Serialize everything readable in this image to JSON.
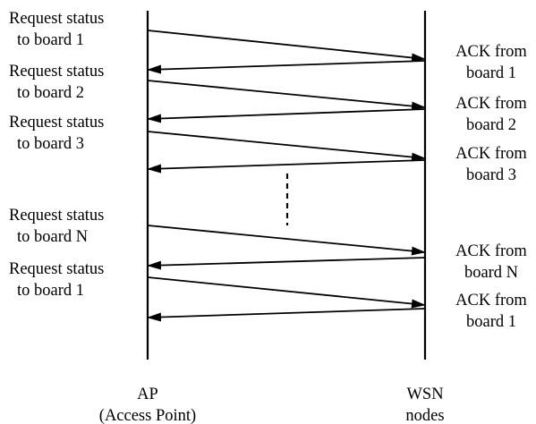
{
  "left_lane": {
    "line1": "AP",
    "line2": "(Access Point)"
  },
  "right_lane": {
    "line1": "WSN",
    "line2": "nodes"
  },
  "requests": [
    {
      "line1": "Request status",
      "line2": "to board 1"
    },
    {
      "line1": "Request status",
      "line2": "to board 2"
    },
    {
      "line1": "Request status",
      "line2": "to board 3"
    },
    {
      "line1": "Request status",
      "line2": "to board N"
    },
    {
      "line1": "Request status",
      "line2": "to board 1"
    }
  ],
  "acks": [
    {
      "line1": "ACK from",
      "line2": "board 1"
    },
    {
      "line1": "ACK from",
      "line2": "board 2"
    },
    {
      "line1": "ACK from",
      "line2": "board 3"
    },
    {
      "line1": "ACK from",
      "line2": "board N"
    },
    {
      "line1": "ACK from",
      "line2": "board 1"
    }
  ],
  "colors": {
    "line": "#000000",
    "background": "#ffffff"
  }
}
